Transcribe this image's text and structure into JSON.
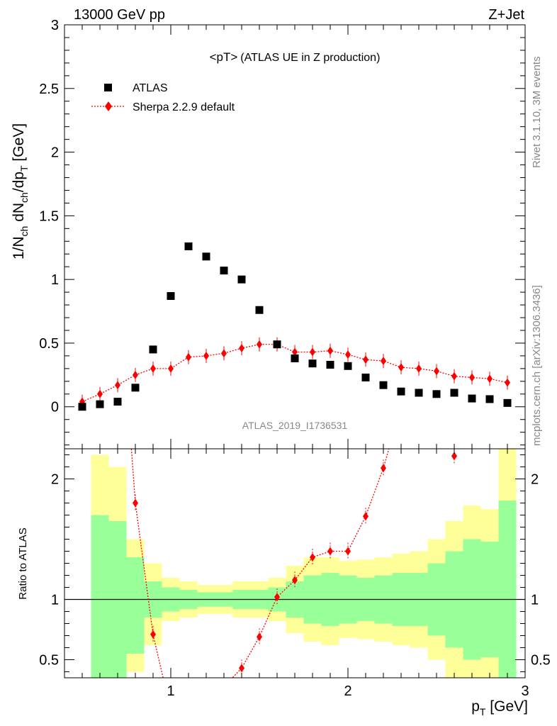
{
  "header": {
    "left": "13000 GeV pp",
    "right": "Z+Jet",
    "side_rivet": "Rivet 3.1.10,  3M events",
    "side_mcplots": "mcplots.cern.ch [arXiv:1306.3436]",
    "analysis_id": "ATLAS_2019_I1736531"
  },
  "colors": {
    "data_marker": "#000000",
    "mc_line": "#ff0000",
    "band_inner": "#99ff99",
    "band_outer": "#ffff99"
  },
  "chart_data": [
    {
      "type": "scatter",
      "title": "<pT>",
      "subtitle": "(ATLAS UE in Z production)",
      "ylabel": "1/N_ch dN_ch/dp_T [GeV]",
      "ylabel_parts": {
        "a": "1/N",
        "a_sub": "ch",
        "b": " dN",
        "b_sub": "ch",
        "c": "/dp",
        "c_sub": "T",
        "d": " [GeV]"
      },
      "xlim": [
        0.4,
        3.0
      ],
      "ylim": [
        -0.33,
        3.0
      ],
      "yticks": [
        0,
        0.5,
        1,
        1.5,
        2,
        2.5,
        3
      ],
      "ytick_labels": [
        "0",
        "0.5",
        "1",
        "1.5",
        "2",
        "2.5",
        "3"
      ],
      "legend_placement": "top-left",
      "x": [
        0.5,
        0.6,
        0.7,
        0.8,
        0.9,
        1.0,
        1.1,
        1.2,
        1.3,
        1.4,
        1.5,
        1.6,
        1.7,
        1.8,
        1.9,
        2.0,
        2.1,
        2.2,
        2.3,
        2.4,
        2.5,
        2.6,
        2.7,
        2.8,
        2.9
      ],
      "series": [
        {
          "name": "ATLAS",
          "marker": "square",
          "values": [
            0.0,
            0.02,
            0.04,
            0.15,
            0.45,
            0.87,
            1.26,
            1.18,
            1.07,
            1.0,
            0.76,
            0.49,
            0.38,
            0.34,
            0.33,
            0.32,
            0.23,
            0.17,
            0.12,
            0.11,
            0.1,
            0.11,
            0.065,
            0.06,
            0.03
          ]
        },
        {
          "name": "Sherpa 2.2.9 default",
          "marker": "diamond",
          "line": "dotted",
          "values": [
            0.04,
            0.1,
            0.17,
            0.25,
            0.3,
            0.3,
            0.39,
            0.4,
            0.42,
            0.46,
            0.49,
            0.49,
            0.43,
            0.43,
            0.44,
            0.41,
            0.37,
            0.36,
            0.31,
            0.3,
            0.28,
            0.24,
            0.23,
            0.22,
            0.19
          ]
        }
      ]
    },
    {
      "type": "line",
      "ylabel": "Ratio to ATLAS",
      "xlabel": "p_T [GeV]",
      "xlabel_parts": {
        "a": "p",
        "a_sub": "T",
        "b": " [GeV]"
      },
      "xlim": [
        0.4,
        3.0
      ],
      "ylim": [
        0.35,
        2.25
      ],
      "yticks": [
        0.5,
        1,
        2
      ],
      "ytick_labels": [
        "0.5",
        "1",
        "2"
      ],
      "xticks": [
        1,
        2,
        3
      ],
      "xtick_labels": [
        "1",
        "2",
        "3"
      ],
      "reference_line": 1.0,
      "series": [
        {
          "name": "Sherpa 2.2.9 default",
          "x": [
            0.8,
            0.9,
            1.4,
            1.5,
            1.6,
            1.7,
            1.8,
            1.9,
            2.0,
            2.1,
            2.2,
            2.6
          ],
          "values": [
            1.8,
            0.71,
            0.43,
            0.69,
            1.02,
            1.16,
            1.35,
            1.4,
            1.4,
            1.69,
            2.09,
            2.19
          ]
        }
      ],
      "uncertainty_bands": {
        "bin_edges": [
          0.55,
          0.65,
          0.75,
          0.85,
          0.95,
          1.05,
          1.15,
          1.25,
          1.35,
          1.45,
          1.55,
          1.65,
          1.75,
          1.85,
          1.95,
          2.05,
          2.15,
          2.25,
          2.35,
          2.45,
          2.55,
          2.65,
          2.75,
          2.85,
          2.95
        ],
        "inner_upper": [
          1.7,
          1.65,
          1.35,
          1.15,
          1.1,
          1.08,
          1.06,
          1.06,
          1.08,
          1.08,
          1.1,
          1.15,
          1.2,
          1.22,
          1.2,
          1.18,
          1.2,
          1.22,
          1.22,
          1.3,
          1.4,
          1.5,
          1.48,
          1.82
        ],
        "inner_lower": [
          0.3,
          0.3,
          0.55,
          0.85,
          0.9,
          0.92,
          0.94,
          0.94,
          0.92,
          0.92,
          0.9,
          0.85,
          0.8,
          0.78,
          0.8,
          0.82,
          0.8,
          0.78,
          0.78,
          0.7,
          0.6,
          0.5,
          0.52,
          0.3
        ],
        "outer_upper": [
          2.2,
          2.1,
          1.5,
          1.3,
          1.18,
          1.15,
          1.12,
          1.12,
          1.15,
          1.15,
          1.18,
          1.28,
          1.35,
          1.35,
          1.32,
          1.33,
          1.35,
          1.38,
          1.4,
          1.5,
          1.65,
          1.78,
          1.75,
          2.25
        ],
        "outer_lower": [
          0.3,
          0.3,
          0.4,
          0.62,
          0.82,
          0.85,
          0.88,
          0.88,
          0.85,
          0.85,
          0.82,
          0.72,
          0.65,
          0.62,
          0.68,
          0.67,
          0.65,
          0.62,
          0.6,
          0.5,
          0.35,
          0.22,
          0.25,
          0.3
        ]
      }
    }
  ]
}
